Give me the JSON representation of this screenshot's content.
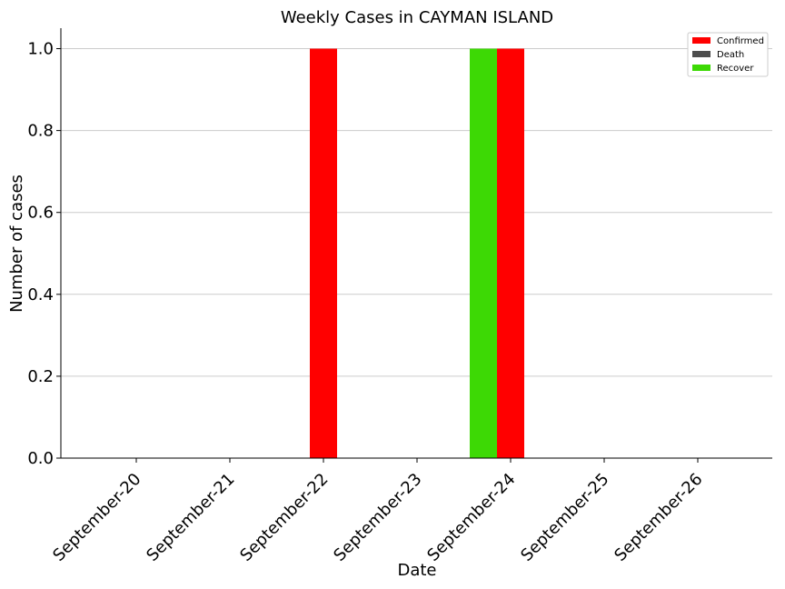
{
  "chart_data": {
    "type": "bar",
    "title": "Weekly Cases in CAYMAN ISLAND",
    "xlabel": "Date",
    "ylabel": "Number of cases",
    "categories": [
      "September-20",
      "September-21",
      "September-22",
      "September-23",
      "September-24",
      "September-25",
      "September-26"
    ],
    "series": [
      {
        "name": "Confirmed",
        "color": "#ff0000",
        "values": [
          0,
          0,
          1,
          0,
          1,
          0,
          0
        ]
      },
      {
        "name": "Death",
        "color": "#4d4d4d",
        "values": [
          0,
          0,
          0,
          0,
          0,
          0,
          0
        ]
      },
      {
        "name": "Recover",
        "color": "#3dd905",
        "values": [
          0,
          0,
          0,
          0,
          1,
          0,
          0
        ]
      }
    ],
    "ylim": [
      0,
      1.05
    ],
    "yticks": [
      "0.0",
      "0.2",
      "0.4",
      "0.6",
      "0.8",
      "1.0"
    ],
    "grid": "horizontal",
    "legend_position": "top-right"
  }
}
